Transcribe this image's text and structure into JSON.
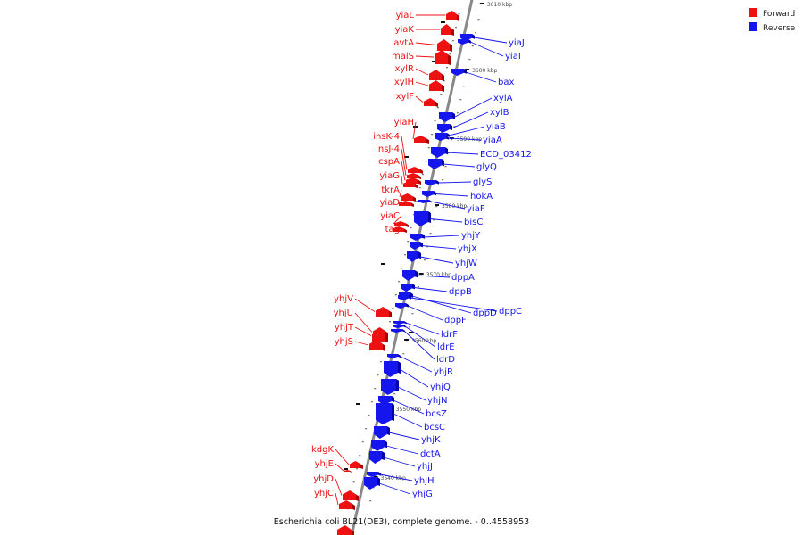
{
  "title": "Escherichia coli BL21(DE3), complete genome. - 0..4558953",
  "colors": {
    "forward": "#ee1111",
    "forward_dark": "#aa0000",
    "reverse": "#1515ee",
    "reverse_dark": "#0000aa",
    "axis": "#888888",
    "background": "#ffffff"
  },
  "legend": [
    {
      "label": "Forward",
      "strand": "forward"
    },
    {
      "label": "Reverse",
      "strand": "reverse"
    }
  ],
  "axis_ticks": [
    "3610 kbp",
    "3600 kbp",
    "3590 kbp",
    "3580 kbp",
    "3570 kbp",
    "3560 kbp",
    "3550 kbp",
    "3540 kbp"
  ],
  "forward_genes": [
    "yiaL",
    "yiaK",
    "avtA",
    "malS",
    "xylR",
    "xylH",
    "xylF",
    "yiaH",
    "insK-4",
    "insJ-4",
    "cspA",
    "yiaG",
    "tkrA",
    "yiaD",
    "yiaC",
    "tag",
    "yhjV",
    "yhjU",
    "yhjT",
    "yhjS",
    "kdgK",
    "yhjE",
    "yhjD",
    "yhjC"
  ],
  "reverse_genes": [
    "yiaJ",
    "yiaI",
    "bax",
    "xylA",
    "xylB",
    "yiaB",
    "yiaA",
    "ECD_03412",
    "glyQ",
    "glyS",
    "hokA",
    "yiaF",
    "bisC",
    "yhjY",
    "yhjX",
    "yhjW",
    "dppA",
    "dppB",
    "dppD",
    "dppC",
    "dppF",
    "ldrF",
    "ldrE",
    "ldrD",
    "yhjR",
    "yhjQ",
    "yhjN",
    "bcsZ",
    "bcsC",
    "yhjK",
    "dctA",
    "yhjJ",
    "yhjH",
    "yhjG"
  ]
}
